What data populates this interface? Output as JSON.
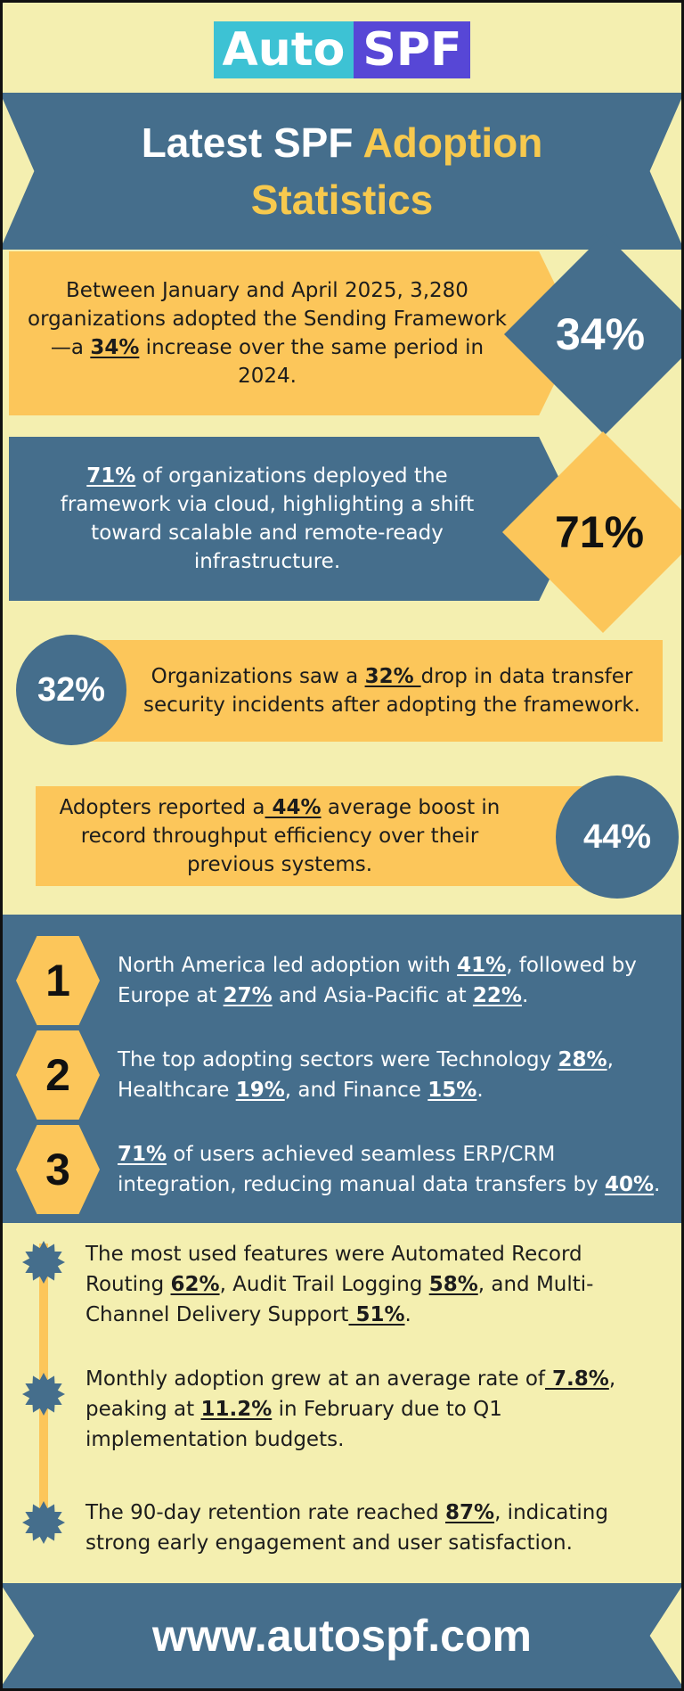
{
  "logo": {
    "part1": "Auto",
    "part2": "SPF"
  },
  "banner": {
    "line1_white": "Latest SPF ",
    "line1_yellow": "Adoption",
    "line2": "Statistics"
  },
  "stats": [
    {
      "value": "34%",
      "pre": "Between January and April 2025, 3,280 organizations adopted the Sending Framework—a ",
      "highlight": "34%",
      "post": " increase over the same period in 2024."
    },
    {
      "value": "71%",
      "pre": "",
      "highlight": "71%",
      "post": " of organizations deployed the framework via cloud, highlighting a shift toward scalable and remote-ready infrastructure."
    },
    {
      "value": "32%",
      "pre": "Organizations saw a ",
      "highlight": "32% ",
      "post": "drop in data transfer security incidents after adopting the framework."
    },
    {
      "value": "44%",
      "pre": "Adopters reported a",
      "highlight": " 44%",
      "post": " average boost in record throughput efficiency over their previous systems."
    }
  ],
  "numbered": [
    {
      "number": "1",
      "parts": [
        {
          "t": "North America led adoption with "
        },
        {
          "u": "41%"
        },
        {
          "t": ", followed by Europe at "
        },
        {
          "u": "27%"
        },
        {
          "t": " and Asia-Pacific at "
        },
        {
          "u": "22%"
        },
        {
          "t": "."
        }
      ]
    },
    {
      "number": "2",
      "parts": [
        {
          "t": "The top adopting sectors were Technology "
        },
        {
          "u": "28%"
        },
        {
          "t": ", Healthcare "
        },
        {
          "u": "19%"
        },
        {
          "t": ", and Finance "
        },
        {
          "u": "15%"
        },
        {
          "t": "."
        }
      ]
    },
    {
      "number": "3",
      "parts": [
        {
          "u": "71%"
        },
        {
          "t": " of users achieved seamless ERP/CRM integration, reducing manual data transfers by "
        },
        {
          "u": "40%"
        },
        {
          "t": "."
        }
      ]
    }
  ],
  "timeline": [
    {
      "parts": [
        {
          "t": "The most used features were Automated Record Routing "
        },
        {
          "u": "62%"
        },
        {
          "t": ", Audit Trail Logging "
        },
        {
          "u": "58%"
        },
        {
          "t": ", and Multi-Channel Delivery Support"
        },
        {
          "u": " 51%"
        },
        {
          "t": "."
        }
      ]
    },
    {
      "parts": [
        {
          "t": "Monthly adoption grew at an average rate of"
        },
        {
          "u": " 7.8%"
        },
        {
          "t": ", peaking at "
        },
        {
          "u": "11.2%"
        },
        {
          "t": " in February due to Q1 implementation budgets."
        }
      ]
    },
    {
      "parts": [
        {
          "t": "The 90-day retention rate reached "
        },
        {
          "u": "87%"
        },
        {
          "t": ", indicating strong early engagement and user satisfaction."
        }
      ]
    }
  ],
  "footer": {
    "url": "www.autospf.com"
  },
  "colors": {
    "background": "#f4efb0",
    "navy": "#456e8c",
    "yellow": "#fcc65a",
    "cyan": "#3dc2d4",
    "purple": "#5747d6"
  }
}
